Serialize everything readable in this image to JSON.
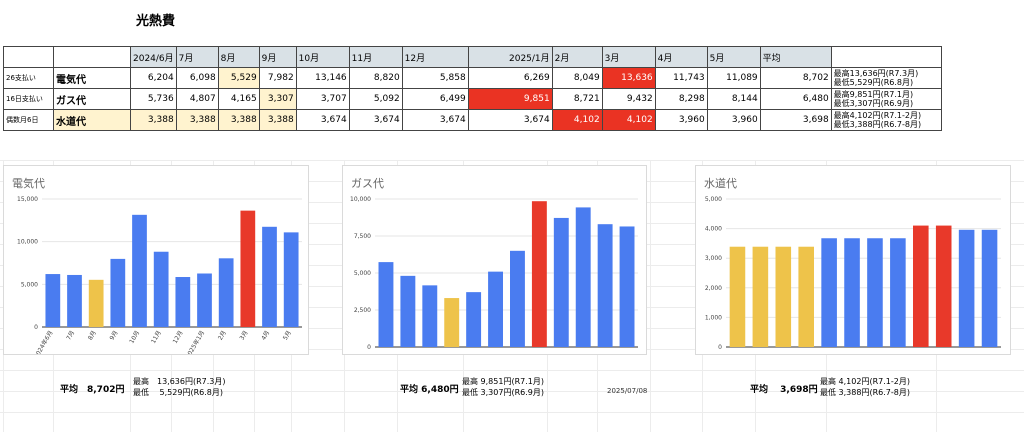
{
  "title": "光熱費",
  "table": {
    "headers": [
      "",
      "",
      "2024/6月",
      "7月",
      "8月",
      "9月",
      "10月",
      "11月",
      "12月",
      "2025/1月",
      "2月",
      "3月",
      "4月",
      "5月",
      "平均",
      ""
    ],
    "rows": [
      {
        "label": "26支払い",
        "name": "電気代",
        "values": [
          "6,204",
          "6,098",
          "5,529",
          "7,982",
          "13,146",
          "8,820",
          "5,858",
          "6,269",
          "8,049",
          "13,636",
          "11,743",
          "11,089"
        ],
        "avg": "8,702",
        "note1": "最高13,636円(R7.3月)",
        "note2": "最低5,529円(R6.8月)"
      },
      {
        "label": "16日支払い",
        "name": "ガス代",
        "values": [
          "5,736",
          "4,807",
          "4,165",
          "3,307",
          "3,707",
          "5,092",
          "6,499",
          "9,851",
          "8,721",
          "9,432",
          "8,298",
          "8,144"
        ],
        "avg": "6,480",
        "note1": "最高9,851円(R7.1月)",
        "note2": "最低3,307円(R6.9月)"
      },
      {
        "label": "偶数月6日",
        "name": "水道代",
        "values": [
          "3,388",
          "3,388",
          "3,388",
          "3,388",
          "3,674",
          "3,674",
          "3,674",
          "3,674",
          "4,102",
          "4,102",
          "3,960",
          "3,960"
        ],
        "avg": "3,698",
        "note1": "最高4,102円(R7.1-2月)",
        "note2": "最低3,388円(R6.7-8月)"
      }
    ]
  },
  "colors": {
    "blue": "#4a7cf0",
    "yellow": "#eec34a",
    "red": "#e8392a",
    "grid": "#e6e6e6",
    "axis": "#333333"
  },
  "chart_data": [
    {
      "type": "bar",
      "title": "電気代",
      "categories": [
        "2024年6月",
        "7月",
        "8月",
        "9月",
        "10月",
        "11月",
        "12月",
        "2025年1月",
        "2月",
        "3月",
        "4月",
        "5月"
      ],
      "values": [
        6204,
        6098,
        5529,
        7982,
        13146,
        8820,
        5858,
        6269,
        8049,
        13636,
        11743,
        11089
      ],
      "bar_colors": [
        "blue",
        "blue",
        "yellow",
        "blue",
        "blue",
        "blue",
        "blue",
        "blue",
        "blue",
        "red",
        "blue",
        "blue"
      ],
      "ylim": [
        0,
        15000
      ],
      "yticks": [
        "0",
        "5,000",
        "10,000",
        "15,000"
      ],
      "grid": true,
      "show_xlabels": true
    },
    {
      "type": "bar",
      "title": "ガス代",
      "categories": [
        "2024年6月",
        "7月",
        "8月",
        "9月",
        "10月",
        "11月",
        "12月",
        "2025年1月",
        "2月",
        "3月",
        "4月",
        "5月"
      ],
      "values": [
        5736,
        4807,
        4165,
        3307,
        3707,
        5092,
        6499,
        9851,
        8721,
        9432,
        8298,
        8144
      ],
      "bar_colors": [
        "blue",
        "blue",
        "blue",
        "yellow",
        "blue",
        "blue",
        "blue",
        "red",
        "blue",
        "blue",
        "blue",
        "blue"
      ],
      "ylim": [
        0,
        10000
      ],
      "yticks": [
        "0",
        "2,500",
        "5,000",
        "7,500",
        "10,000"
      ],
      "grid": true,
      "show_xlabels": false
    },
    {
      "type": "bar",
      "title": "水道代",
      "categories": [
        "2024年6月",
        "7月",
        "8月",
        "9月",
        "10月",
        "11月",
        "12月",
        "2025年1月",
        "2月",
        "3月",
        "4月",
        "5月"
      ],
      "values": [
        3388,
        3388,
        3388,
        3388,
        3674,
        3674,
        3674,
        3674,
        4102,
        4102,
        3960,
        3960
      ],
      "bar_colors": [
        "yellow",
        "yellow",
        "yellow",
        "yellow",
        "blue",
        "blue",
        "blue",
        "blue",
        "red",
        "red",
        "blue",
        "blue"
      ],
      "ylim": [
        0,
        5000
      ],
      "yticks": [
        "0",
        "1,000",
        "2,000",
        "3,000",
        "4,000",
        "5,000"
      ],
      "grid": true,
      "show_xlabels": false
    }
  ],
  "footers": [
    {
      "avg": "平均　8,702円",
      "max": "最高　13,636円(R7.3月)",
      "min": "最低　 5,529円(R6.8月)"
    },
    {
      "avg": "平均 6,480円",
      "max": "最高 9,851円(R7.1月)",
      "min": "最低 3,307円(R6.9月)"
    },
    {
      "avg": "平均　 3,698円",
      "max": "最高 4,102円(R7.1-2月)",
      "min": "最低 3,388円(R6.7-8月)"
    }
  ],
  "date_stamp": "2025/07/08"
}
